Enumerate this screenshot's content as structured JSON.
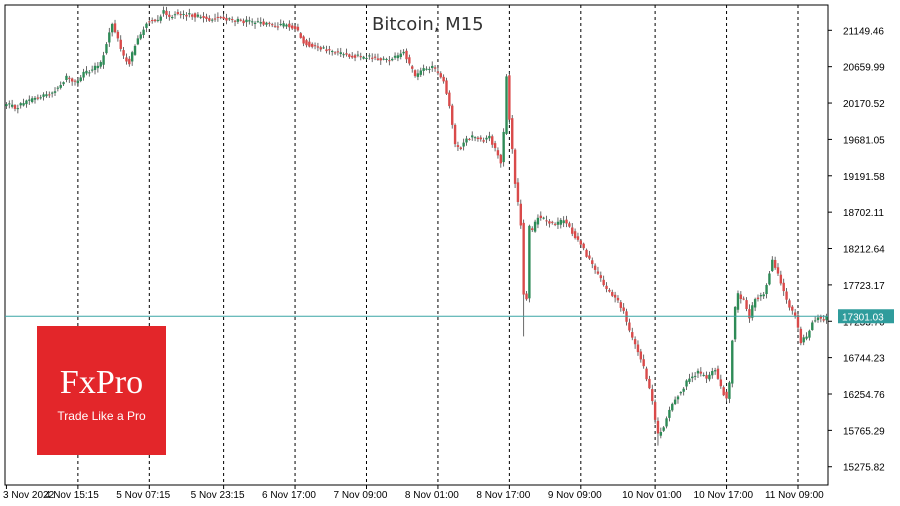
{
  "chart_data": {
    "type": "candlestick",
    "title": "Bitcoin, M15",
    "symbol": "Bitcoin",
    "timeframe": "M15",
    "y_ticks": [
      "21149.46",
      "20659.99",
      "20170.52",
      "19681.05",
      "19191.58",
      "18702.11",
      "18212.64",
      "17723.17",
      "17233.70",
      "16744.23",
      "16254.76",
      "15765.29",
      "15275.82"
    ],
    "x_ticks": [
      "3 Nov 2022",
      "4 Nov 15:15",
      "5 Nov 07:15",
      "5 Nov 23:15",
      "6 Nov 17:00",
      "7 Nov 09:00",
      "8 Nov 01:00",
      "8 Nov 17:00",
      "9 Nov 09:00",
      "10 Nov 01:00",
      "10 Nov 17:00",
      "11 Nov 09:00"
    ],
    "ylim": [
      15030,
      21490
    ],
    "current_price": 17301.03,
    "current_price_label": "17301.03",
    "grid": "vertical dashed",
    "colors": {
      "bull": "#2e8b57",
      "bear": "#d94a4a",
      "wick": "#444444",
      "current_line": "#3aa6a6",
      "current_label_bg": "#2f9c9c",
      "axis": "#000000",
      "grid": "#000000"
    },
    "price_path": [
      [
        0,
        20150
      ],
      [
        3,
        20110
      ],
      [
        6,
        20170
      ],
      [
        9,
        20220
      ],
      [
        12,
        20250
      ],
      [
        15,
        20300
      ],
      [
        18,
        20370
      ],
      [
        21,
        20520
      ],
      [
        24,
        20450
      ],
      [
        27,
        20560
      ],
      [
        30,
        20620
      ],
      [
        33,
        20700
      ],
      [
        35,
        20980
      ],
      [
        37,
        21250
      ],
      [
        39,
        21020
      ],
      [
        41,
        20780
      ],
      [
        43,
        20720
      ],
      [
        45,
        20950
      ],
      [
        47,
        21100
      ],
      [
        49,
        21250
      ],
      [
        51,
        21310
      ],
      [
        53,
        21290
      ],
      [
        55,
        21420
      ],
      [
        57,
        21330
      ],
      [
        59,
        21380
      ],
      [
        62,
        21340
      ],
      [
        65,
        21360
      ],
      [
        68,
        21330
      ],
      [
        71,
        21300
      ],
      [
        74,
        21320
      ],
      [
        77,
        21300
      ],
      [
        80,
        21280
      ],
      [
        83,
        21270
      ],
      [
        86,
        21250
      ],
      [
        89,
        21250
      ],
      [
        92,
        21230
      ],
      [
        95,
        21210
      ],
      [
        98,
        21220
      ],
      [
        101,
        21190
      ],
      [
        104,
        21000
      ],
      [
        107,
        20930
      ],
      [
        110,
        20900
      ],
      [
        113,
        20870
      ],
      [
        116,
        20840
      ],
      [
        119,
        20830
      ],
      [
        122,
        20800
      ],
      [
        125,
        20780
      ],
      [
        128,
        20790
      ],
      [
        131,
        20750
      ],
      [
        134,
        20760
      ],
      [
        137,
        20810
      ],
      [
        139,
        20880
      ],
      [
        141,
        20680
      ],
      [
        143,
        20530
      ],
      [
        145,
        20590
      ],
      [
        147,
        20640
      ],
      [
        149,
        20660
      ],
      [
        151,
        20570
      ],
      [
        153,
        20490
      ],
      [
        155,
        20140
      ],
      [
        157,
        19590
      ],
      [
        159,
        19580
      ],
      [
        161,
        19700
      ],
      [
        163,
        19720
      ],
      [
        165,
        19700
      ],
      [
        167,
        19680
      ],
      [
        169,
        19720
      ],
      [
        171,
        19540
      ],
      [
        173,
        19380
      ],
      [
        174,
        19760
      ],
      [
        175,
        20530
      ],
      [
        176,
        19950
      ],
      [
        178,
        19100
      ],
      [
        180,
        18540
      ],
      [
        181,
        17600
      ],
      [
        182,
        17550
      ],
      [
        183,
        18500
      ],
      [
        184,
        18450
      ],
      [
        186,
        18650
      ],
      [
        189,
        18590
      ],
      [
        192,
        18520
      ],
      [
        195,
        18600
      ],
      [
        198,
        18430
      ],
      [
        201,
        18270
      ],
      [
        204,
        18060
      ],
      [
        207,
        17850
      ],
      [
        210,
        17660
      ],
      [
        212,
        17580
      ],
      [
        214,
        17490
      ],
      [
        216,
        17370
      ],
      [
        218,
        17080
      ],
      [
        220,
        16930
      ],
      [
        222,
        16740
      ],
      [
        224,
        16460
      ],
      [
        226,
        16160
      ],
      [
        227,
        15910
      ],
      [
        228,
        15700
      ],
      [
        230,
        15800
      ],
      [
        232,
        16050
      ],
      [
        234,
        16200
      ],
      [
        236,
        16300
      ],
      [
        239,
        16460
      ],
      [
        242,
        16550
      ],
      [
        245,
        16460
      ],
      [
        248,
        16590
      ],
      [
        250,
        16330
      ],
      [
        252,
        16200
      ],
      [
        253,
        16410
      ],
      [
        254,
        16990
      ],
      [
        255,
        17400
      ],
      [
        256,
        17610
      ],
      [
        258,
        17500
      ],
      [
        260,
        17300
      ],
      [
        262,
        17550
      ],
      [
        265,
        17580
      ],
      [
        268,
        18060
      ],
      [
        270,
        17880
      ],
      [
        272,
        17640
      ],
      [
        274,
        17420
      ],
      [
        276,
        17320
      ],
      [
        278,
        16950
      ],
      [
        280,
        17030
      ],
      [
        282,
        17230
      ],
      [
        284,
        17300
      ],
      [
        286,
        17240
      ],
      [
        287,
        17301.03
      ]
    ],
    "spikes": [
      {
        "i": 175,
        "high": 20560
      },
      {
        "i": 181,
        "low": 17030
      },
      {
        "i": 228,
        "low": 15560
      },
      {
        "i": 268,
        "high": 18110
      }
    ]
  },
  "logo": {
    "word": "FxPro",
    "tagline": "Trade Like a Pro"
  }
}
